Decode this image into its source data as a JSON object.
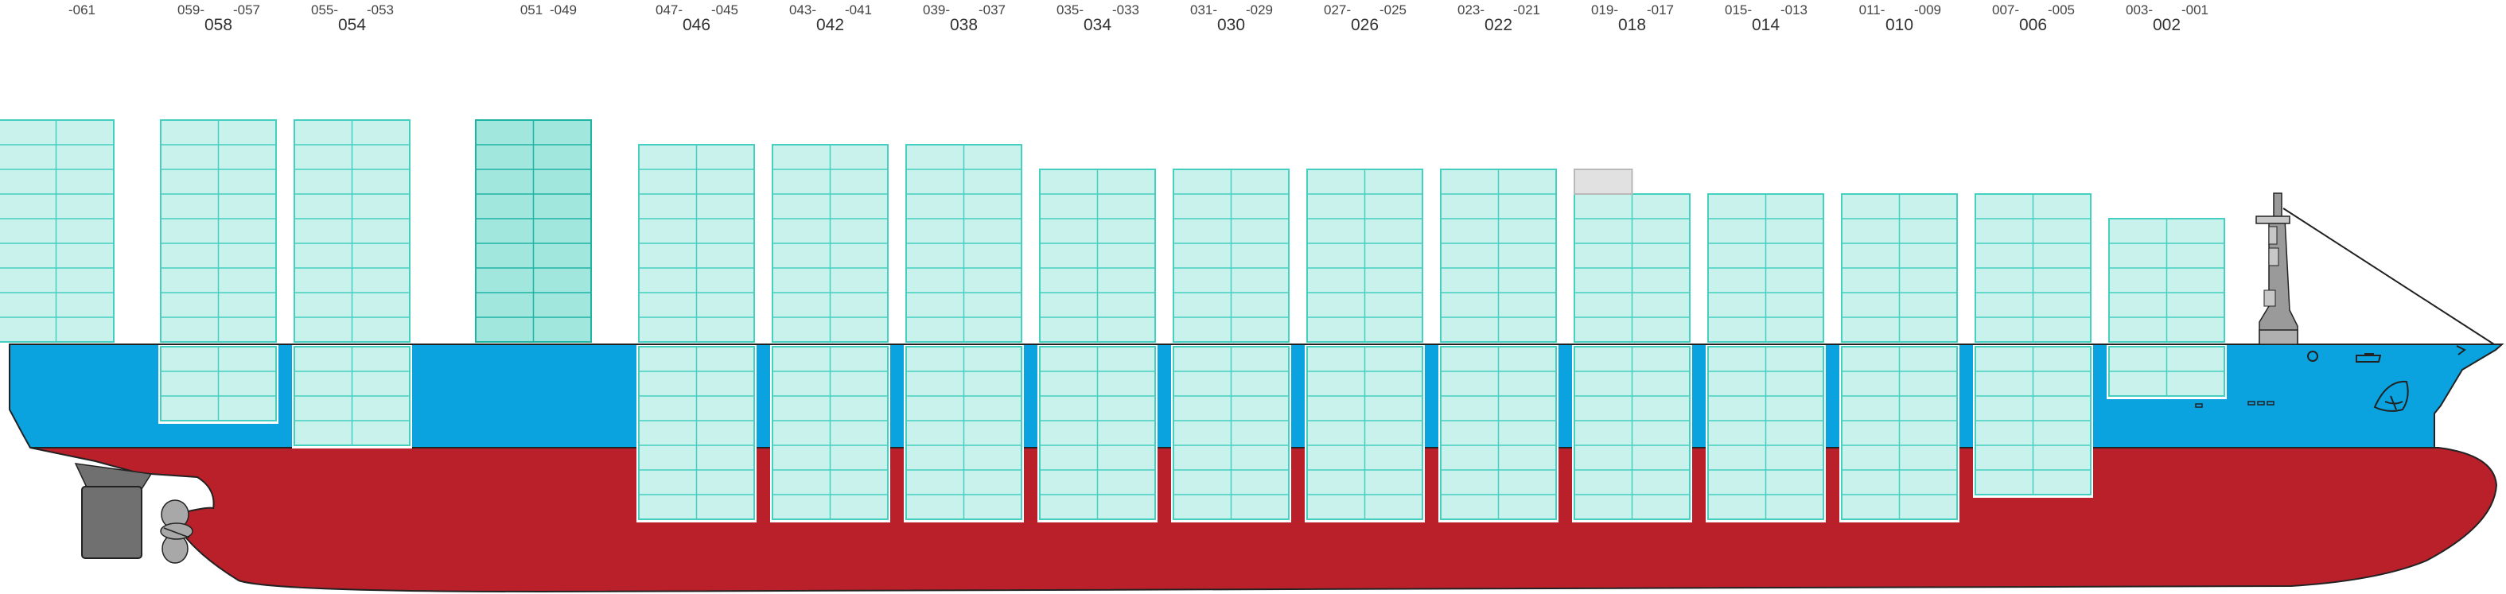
{
  "colors": {
    "container_fill": "#c9f2ec",
    "container_stroke": "#45cfc0",
    "container_fill_highlight": "#a2e7de",
    "container_stroke_highlight": "#1fb3a3",
    "container_fill_empty": "#e1e1e1",
    "container_stroke_empty": "#b8b8b8",
    "hull_red": "#b9202a",
    "hull_blue": "#0aa3df",
    "outline": "#222222",
    "rudder": "#707070",
    "propeller": "#a8a8a8"
  },
  "bays": [
    {
      "big": "",
      "small_left": "",
      "small_right": "-061",
      "deck_tiers": 9,
      "hold_tiers": 0,
      "state": "normal"
    },
    {
      "big": "058",
      "small_left": "059-",
      "small_right": "-057",
      "deck_tiers": 9,
      "hold_tiers": 3,
      "state": "normal"
    },
    {
      "big": "054",
      "small_left": "055-",
      "small_right": "-053",
      "deck_tiers": 9,
      "hold_tiers": 4,
      "state": "normal"
    },
    {
      "big": "",
      "small_left": "051",
      "small_right": "-049",
      "deck_tiers": 9,
      "hold_tiers": 0,
      "state": "highlight"
    },
    {
      "big": "046",
      "small_left": "047-",
      "small_right": "-045",
      "deck_tiers": 8,
      "hold_tiers": 7,
      "state": "normal"
    },
    {
      "big": "042",
      "small_left": "043-",
      "small_right": "-041",
      "deck_tiers": 8,
      "hold_tiers": 7,
      "state": "normal"
    },
    {
      "big": "038",
      "small_left": "039-",
      "small_right": "-037",
      "deck_tiers": 8,
      "hold_tiers": 7,
      "state": "normal"
    },
    {
      "big": "034",
      "small_left": "035-",
      "small_right": "-033",
      "deck_tiers": 7,
      "hold_tiers": 7,
      "state": "normal"
    },
    {
      "big": "030",
      "small_left": "031-",
      "small_right": "-029",
      "deck_tiers": 7,
      "hold_tiers": 7,
      "state": "normal"
    },
    {
      "big": "026",
      "small_left": "027-",
      "small_right": "-025",
      "deck_tiers": 7,
      "hold_tiers": 7,
      "state": "normal"
    },
    {
      "big": "022",
      "small_left": "023-",
      "small_right": "-021",
      "deck_tiers": 7,
      "hold_tiers": 7,
      "state": "normal"
    },
    {
      "big": "018",
      "small_left": "019-",
      "small_right": "-017",
      "deck_tiers": 6,
      "hold_tiers": 7,
      "state": "normal",
      "empty_top": true
    },
    {
      "big": "014",
      "small_left": "015-",
      "small_right": "-013",
      "deck_tiers": 6,
      "hold_tiers": 7,
      "state": "normal"
    },
    {
      "big": "010",
      "small_left": "011-",
      "small_right": "-009",
      "deck_tiers": 6,
      "hold_tiers": 7,
      "state": "normal"
    },
    {
      "big": "006",
      "small_left": "007-",
      "small_right": "-005",
      "deck_tiers": 6,
      "hold_tiers": 6,
      "state": "normal"
    },
    {
      "big": "002",
      "small_left": "003-",
      "small_right": "-001",
      "deck_tiers": 5,
      "hold_tiers": 2,
      "state": "normal"
    }
  ]
}
